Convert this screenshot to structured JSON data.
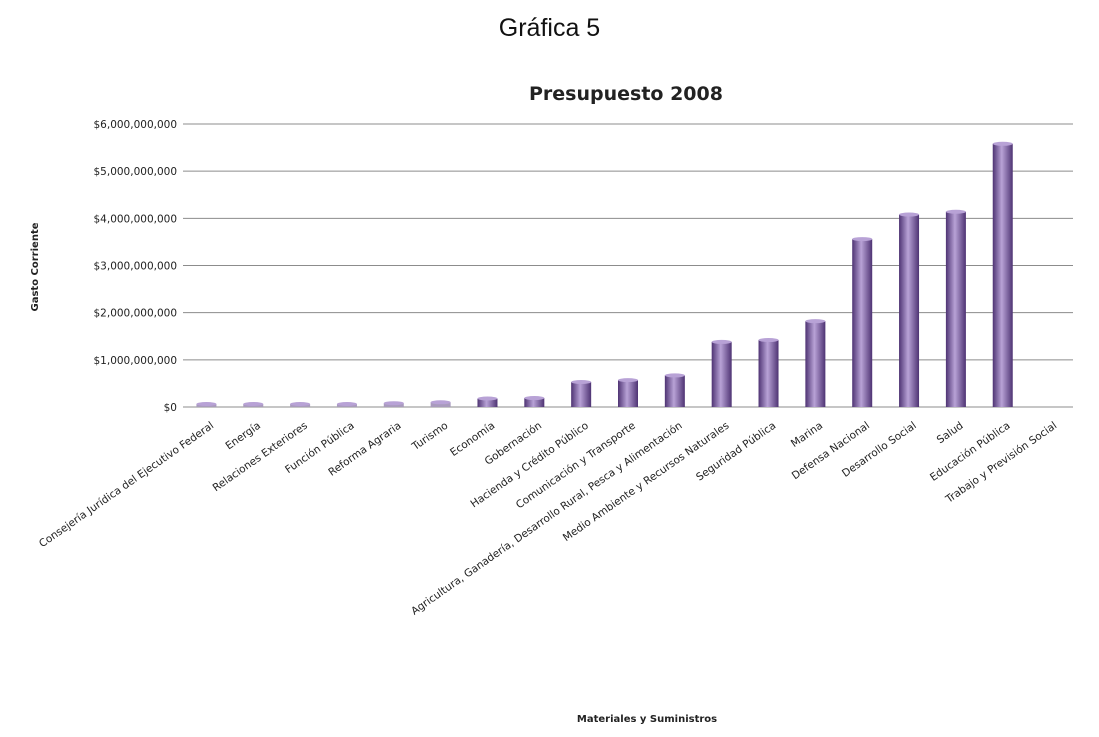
{
  "caption": "Gráfica 5",
  "colors": {
    "bar": "#7b5aa6",
    "bar_light": "#b8a2d6",
    "bar_dark": "#4e3373",
    "grid": "#8c8c8c"
  },
  "chart_data": {
    "type": "bar",
    "title": "Presupuesto 2008",
    "xlabel": "Materiales y Suministros",
    "ylabel": "Gasto Corriente",
    "ylim": [
      0,
      6000000000
    ],
    "yticks": [
      0,
      1000000000,
      2000000000,
      3000000000,
      4000000000,
      5000000000,
      6000000000
    ],
    "ytick_labels": [
      "$0",
      "$1,000,000,000",
      "$2,000,000,000",
      "$3,000,000,000",
      "$4,000,000,000",
      "$5,000,000,000",
      "$6,000,000,000"
    ],
    "grid": true,
    "legend": "none",
    "categories": [
      "Consejería Jurídica del Ejecutivo Federal",
      "Energía",
      "Relaciones Exteriores",
      "Función Pública",
      "Reforma Agraria",
      "Turismo",
      "Economía",
      "Gobernación",
      "Hacienda y Crédito Público",
      "Comunicación y Transporte",
      "Agricultura, Ganadería, Desarrollo Rural, Pesca y Alimentación",
      "Medio Ambiente y Recursos Naturales",
      "Seguridad Pública",
      "Marina",
      "Defensa Nacional",
      "Desarrollo Social",
      "Salud",
      "Educación Pública",
      "Trabajo y Previsión Social"
    ],
    "values": [
      15000000,
      25000000,
      30000000,
      40000000,
      80000000,
      100000000,
      180000000,
      190000000,
      530000000,
      570000000,
      670000000,
      1380000000,
      1420000000,
      1820000000,
      3560000000,
      4080000000,
      4140000000,
      5580000000,
      0
    ]
  }
}
